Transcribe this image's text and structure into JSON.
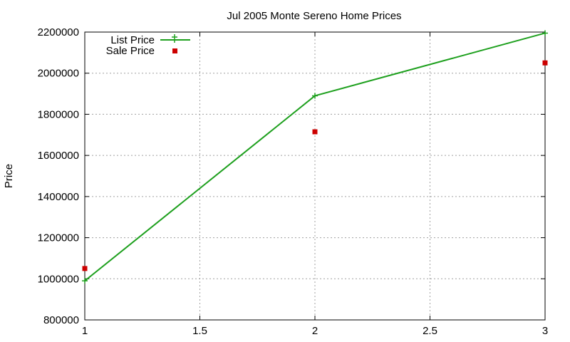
{
  "chart_data": {
    "type": "line",
    "title": "Jul 2005 Monte Sereno Home Prices",
    "xlabel": "",
    "ylabel": "Price",
    "xlim": [
      1,
      3
    ],
    "ylim": [
      800000,
      2200000
    ],
    "x_ticks": [
      1,
      1.5,
      2,
      2.5,
      3
    ],
    "x_tick_labels": [
      "1",
      "1.5",
      "2",
      "2.5",
      "3"
    ],
    "y_ticks": [
      800000,
      1000000,
      1200000,
      1400000,
      1600000,
      1800000,
      2000000,
      2200000
    ],
    "y_tick_labels": [
      "800000",
      "1000000",
      "1200000",
      "1400000",
      "1600000",
      "1800000",
      "2000000",
      "2200000"
    ],
    "grid": true,
    "legend_position": "top-left",
    "series": [
      {
        "name": "List Price",
        "style": "line-with-plus-markers",
        "color": "#1ea01e",
        "x": [
          1,
          2,
          3
        ],
        "values": [
          990000,
          1890000,
          2195000
        ]
      },
      {
        "name": "Sale Price",
        "style": "square-markers",
        "color": "#cc0000",
        "x": [
          1,
          2,
          3
        ],
        "values": [
          1050000,
          1715000,
          2050000
        ]
      }
    ]
  }
}
